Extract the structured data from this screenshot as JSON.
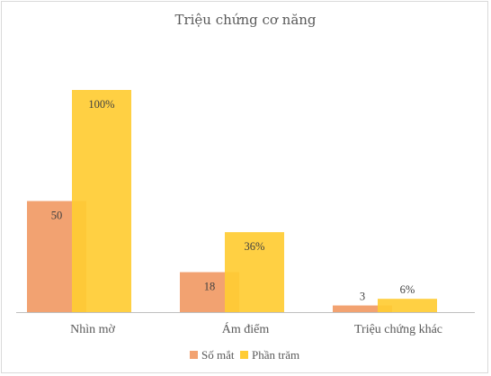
{
  "chart_data": {
    "type": "bar",
    "title": "Triệu chứng cơ năng",
    "xlabel": "",
    "ylabel": "",
    "categories": [
      "Nhìn mờ",
      "Ám điểm",
      "Triệu chứng khác"
    ],
    "series": [
      {
        "name": "Số mắt",
        "values": [
          50,
          18,
          3
        ],
        "labels": [
          "50",
          "18",
          "3"
        ],
        "color": "#F2A271"
      },
      {
        "name": "Phần trăm",
        "values": [
          100,
          36,
          6
        ],
        "labels": [
          "100%",
          "36%",
          "6%"
        ],
        "color": "#FFCC33"
      }
    ],
    "ylim": [
      0,
      100
    ],
    "grid": false,
    "legend": "bottom"
  }
}
